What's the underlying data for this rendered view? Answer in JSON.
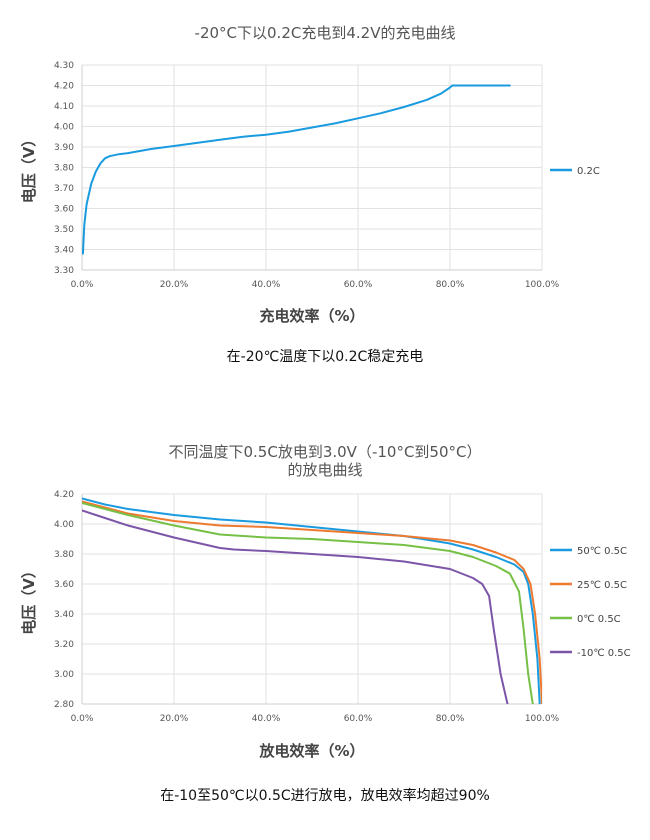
{
  "chart_data": [
    {
      "type": "line",
      "title": "-20°C下以0.2C充电到4.2V的充电曲线",
      "xlabel": "充电效率（%）",
      "ylabel": "电压（V）",
      "xlim": [
        0,
        100
      ],
      "ylim": [
        3.3,
        4.3
      ],
      "x_ticks": [
        "0.0%",
        "20.0%",
        "40.0%",
        "60.0%",
        "80.0%",
        "100.0%"
      ],
      "y_ticks": [
        "3.30",
        "3.40",
        "3.50",
        "3.60",
        "3.70",
        "3.80",
        "3.90",
        "4.00",
        "4.10",
        "4.20",
        "4.30"
      ],
      "grid": true,
      "legend_position": "right",
      "series": [
        {
          "name": "0.2C",
          "color": "#1a9be0",
          "x": [
            0.2,
            0.5,
            1,
            2,
            3,
            4,
            5,
            6,
            8,
            10,
            15,
            20,
            25,
            30,
            35,
            40,
            45,
            50,
            55,
            60,
            65,
            70,
            75,
            78,
            80,
            80.5,
            85,
            90,
            93
          ],
          "y": [
            3.38,
            3.52,
            3.62,
            3.72,
            3.78,
            3.82,
            3.845,
            3.855,
            3.865,
            3.87,
            3.89,
            3.905,
            3.92,
            3.935,
            3.95,
            3.96,
            3.975,
            3.995,
            4.015,
            4.04,
            4.065,
            4.095,
            4.13,
            4.16,
            4.19,
            4.2,
            4.2,
            4.2,
            4.2
          ]
        }
      ]
    },
    {
      "type": "line",
      "title": "不同温度下0.5C放电到3.0V（-10°C到50°C）",
      "subtitle": "的放电曲线",
      "xlabel": "放电效率（%）",
      "ylabel": "电压（V）",
      "xlim": [
        0,
        100
      ],
      "ylim": [
        2.8,
        4.2
      ],
      "x_ticks": [
        "0.0%",
        "20.0%",
        "40.0%",
        "60.0%",
        "80.0%",
        "100.0%"
      ],
      "y_ticks": [
        "2.80",
        "3.00",
        "3.20",
        "3.40",
        "3.60",
        "3.80",
        "4.00",
        "4.20"
      ],
      "grid": true,
      "legend_position": "right",
      "series": [
        {
          "name": "50℃ 0.5C",
          "color": "#1a9be0",
          "x": [
            0,
            5,
            10,
            20,
            30,
            40,
            50,
            60,
            70,
            80,
            85,
            90,
            94,
            96,
            97,
            98,
            99,
            99.5
          ],
          "y": [
            4.17,
            4.13,
            4.1,
            4.06,
            4.03,
            4.01,
            3.98,
            3.95,
            3.92,
            3.87,
            3.83,
            3.78,
            3.73,
            3.68,
            3.6,
            3.4,
            3.1,
            2.8
          ]
        },
        {
          "name": "25℃ 0.5C",
          "color": "#ee7a30",
          "x": [
            0,
            5,
            10,
            20,
            30,
            40,
            50,
            60,
            70,
            80,
            85,
            90,
            94,
            96,
            97.5,
            98.5,
            99.5,
            100
          ],
          "y": [
            4.15,
            4.11,
            4.07,
            4.02,
            3.99,
            3.98,
            3.96,
            3.94,
            3.92,
            3.89,
            3.86,
            3.81,
            3.76,
            3.7,
            3.6,
            3.4,
            3.1,
            2.8
          ]
        },
        {
          "name": "0℃ 0.5C",
          "color": "#76c045",
          "x": [
            0,
            5,
            10,
            20,
            30,
            40,
            50,
            60,
            70,
            80,
            85,
            90,
            93,
            95,
            96,
            97,
            98
          ],
          "y": [
            4.14,
            4.1,
            4.06,
            3.99,
            3.93,
            3.91,
            3.9,
            3.88,
            3.86,
            3.82,
            3.78,
            3.72,
            3.67,
            3.55,
            3.3,
            3.0,
            2.8
          ]
        },
        {
          "name": "-10℃ 0.5C",
          "color": "#7c55a8",
          "x": [
            0,
            5,
            10,
            20,
            30,
            33,
            40,
            50,
            60,
            70,
            80,
            85,
            87,
            88.5,
            89.5,
            91,
            92.5
          ],
          "y": [
            4.09,
            4.04,
            3.99,
            3.91,
            3.84,
            3.83,
            3.82,
            3.8,
            3.78,
            3.75,
            3.7,
            3.64,
            3.6,
            3.52,
            3.3,
            3.0,
            2.8
          ]
        }
      ]
    }
  ],
  "captions": {
    "chart1": "在-20℃温度下以0.2C稳定充电",
    "chart2": "在-10至50℃以0.5C进行放电，放电效率均超过90%"
  }
}
